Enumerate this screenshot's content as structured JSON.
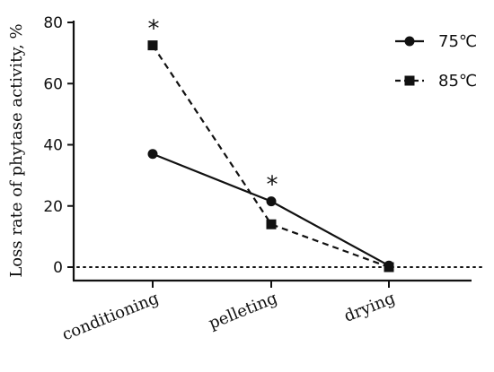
{
  "chart_data": {
    "type": "line",
    "ylabel": "Loss rate of phytase activity, %",
    "xlabel": "",
    "categories": [
      "conditioning",
      "pelleting",
      "drying"
    ],
    "ylim": [
      0,
      80
    ],
    "yticks": [
      0,
      20,
      40,
      60,
      80
    ],
    "series": [
      {
        "name": "75℃",
        "values": [
          37,
          21.5,
          0.5
        ],
        "marker": "circle",
        "line": "solid",
        "color": "#111111"
      },
      {
        "name": "85℃",
        "values": [
          72.5,
          14,
          0
        ],
        "marker": "square",
        "line": "dashed",
        "color": "#111111"
      }
    ],
    "reference_line": {
      "y": 0,
      "style": "dotted"
    },
    "annotations": [
      {
        "text": "*",
        "category": "conditioning",
        "value": 72.5
      },
      {
        "text": "*",
        "category": "pelleting",
        "value": 21.5
      }
    ],
    "legend_position": "top-right",
    "grid": false
  }
}
